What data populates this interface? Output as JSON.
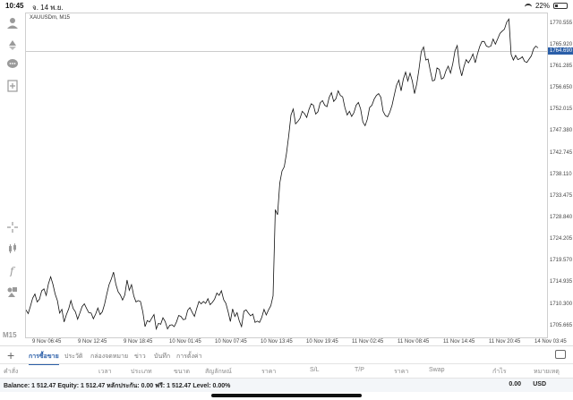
{
  "status_bar": {
    "time": "10:45",
    "date": "จ. 14 พ.ย.",
    "battery": "22%",
    "battery_level": 0.22
  },
  "chart": {
    "symbol_title": "XAUUSDm, M15",
    "price_labels": [
      "1770.555",
      "1765.920",
      "1761.285",
      "1756.650",
      "1752.015",
      "1747.380",
      "1742.745",
      "1738.110",
      "1733.475",
      "1728.840",
      "1724.205",
      "1719.570",
      "1714.935",
      "1710.300",
      "1705.665"
    ],
    "current_price": "1764.690",
    "time_labels": [
      "9 Nov 06:45",
      "9 Nov 12:45",
      "9 Nov 18:45",
      "10 Nov 01:45",
      "10 Nov 07:45",
      "10 Nov 13:45",
      "10 Nov 19:45",
      "11 Nov 02:45",
      "11 Nov 08:45",
      "11 Nov 14:45",
      "11 Nov 20:45",
      "14 Nov 03:45"
    ]
  },
  "chart_data": {
    "type": "line",
    "title": "XAUUSDm, M15",
    "xlabel": "",
    "ylabel": "",
    "ylim": [
      1703.3,
      1772.8
    ],
    "current_price": 1764.69,
    "series": [
      {
        "values": [
          1709.2,
          1708.4,
          1710.0,
          1711.7,
          1712.6,
          1710.9,
          1711.5,
          1713.3,
          1713.7,
          1712.3,
          1714.8,
          1716.3,
          1714.7,
          1712.6,
          1711.2,
          1708.5,
          1709.3,
          1706.6,
          1708.2,
          1709.4,
          1711.2,
          1709.5,
          1708.8,
          1707.2,
          1708.5,
          1709.9,
          1710.5,
          1709.5,
          1708.6,
          1708.5,
          1707.3,
          1708.3,
          1709.6,
          1708.2,
          1708.8,
          1710.4,
          1712.6,
          1714.6,
          1715.8,
          1717.3,
          1714.7,
          1713.1,
          1712.4,
          1711.3,
          1712.4,
          1715.6,
          1713.4,
          1714.6,
          1712.2,
          1710.9,
          1711.2,
          1711.0,
          1708.8,
          1705.6,
          1706.9,
          1706.6,
          1707.4,
          1708.2,
          1705.1,
          1706.3,
          1706.1,
          1707.5,
          1706.7,
          1705.1,
          1705.9,
          1706.0,
          1705.6,
          1706.6,
          1708.0,
          1707.8,
          1707.1,
          1707.2,
          1709.1,
          1709.7,
          1708.7,
          1707.8,
          1709.5,
          1711.0,
          1710.5,
          1711.0,
          1710.6,
          1711.6,
          1710.3,
          1710.8,
          1711.5,
          1712.8,
          1712.3,
          1713.3,
          1711.4,
          1710.6,
          1708.8,
          1706.7,
          1709.4,
          1707.8,
          1708.6,
          1706.8,
          1705.6,
          1708.9,
          1709.2,
          1708.5,
          1707.9,
          1708.3,
          1706.5,
          1706.8,
          1706.5,
          1707.6,
          1709.3,
          1708.1,
          1709.2,
          1710.1,
          1712.2,
          1730.7,
          1729.6,
          1736.4,
          1739.0,
          1739.9,
          1742.8,
          1746.6,
          1751.0,
          1752.3,
          1749.1,
          1749.6,
          1750.3,
          1751.8,
          1751.3,
          1750.5,
          1752.2,
          1753.4,
          1753.1,
          1751.2,
          1751.7,
          1753.6,
          1754.1,
          1753.1,
          1752.8,
          1754.8,
          1755.8,
          1753.9,
          1754.5,
          1756.2,
          1755.2,
          1754.9,
          1752.6,
          1751.0,
          1751.8,
          1750.7,
          1751.5,
          1753.1,
          1753.7,
          1752.3,
          1749.5,
          1748.7,
          1750.1,
          1752.6,
          1753.1,
          1754.4,
          1755.2,
          1755.6,
          1754.8,
          1751.8,
          1750.9,
          1750.6,
          1751.6,
          1753.1,
          1755.3,
          1757.4,
          1758.5,
          1756.2,
          1758.7,
          1760.2,
          1758.3,
          1760.0,
          1758.3,
          1755.6,
          1757.7,
          1760.9,
          1764.6,
          1765.6,
          1762.8,
          1763.0,
          1760.5,
          1758.3,
          1758.5,
          1761.1,
          1760.8,
          1758.7,
          1759.0,
          1760.5,
          1761.5,
          1760.0,
          1762.0,
          1764.8,
          1765.9,
          1761.4,
          1759.4,
          1761.4,
          1762.9,
          1762.2,
          1763.0,
          1764.1,
          1762.2,
          1764.1,
          1765.7,
          1766.8,
          1766.8,
          1765.8,
          1765.6,
          1765.8,
          1767.3,
          1766.2,
          1767.3,
          1768.5,
          1769.0,
          1769.4,
          1770.9,
          1771.6,
          1764.0,
          1762.8,
          1763.8,
          1762.9,
          1763.1,
          1763.5,
          1762.5,
          1762.3,
          1763.0,
          1763.7,
          1765.2,
          1765.8,
          1765.4
        ]
      }
    ]
  },
  "tabs": [
    {
      "label": "การซื้อขาย",
      "active": true
    },
    {
      "label": "ประวัติ",
      "active": false
    },
    {
      "label": "กล่องจดหมาย",
      "active": false
    },
    {
      "label": "ข่าว",
      "active": false
    },
    {
      "label": "บันทึก",
      "active": false
    },
    {
      "label": "การตั้งค่า",
      "active": false
    }
  ],
  "columns": [
    "คำสั่ง",
    "เวลา",
    "ประเภท",
    "ขนาด",
    "สัญลักษณ์",
    "ราคา",
    "S/L",
    "T/P",
    "ราคา",
    "Swap",
    "กำไร",
    "หมายเหตุ"
  ],
  "balance": {
    "text": "Balance: 1 512.47 Equity: 1 512.47 หลักประกัน: 0.00 ฟรี: 1 512.47 Level: 0.00%",
    "total": "0.00",
    "currency": "USD"
  },
  "toolbar": {
    "icons": [
      "person-icon",
      "trade-icon",
      "chat-icon",
      "add-page-icon",
      "crosshair-icon",
      "candle-type-icon",
      "indicator-icon",
      "objects-icon"
    ],
    "timeframe": "M15"
  }
}
